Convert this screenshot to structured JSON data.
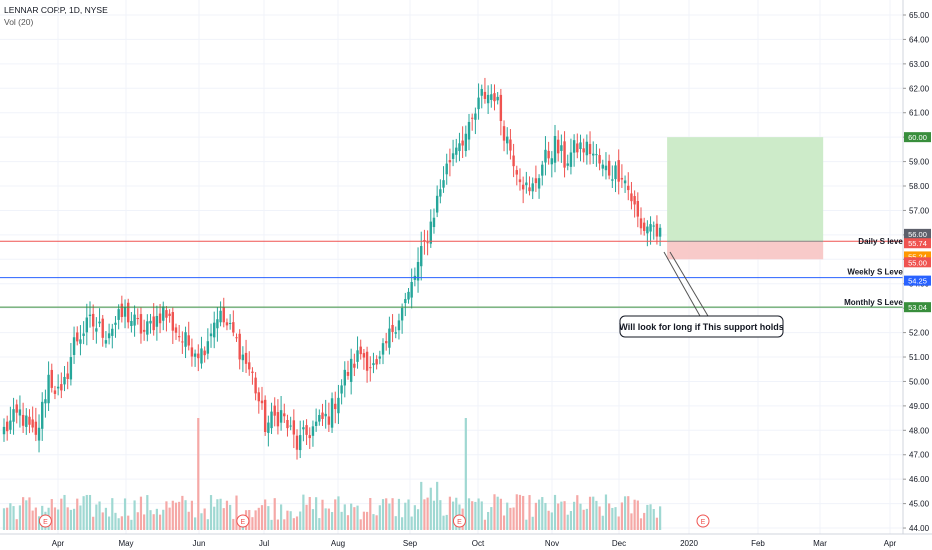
{
  "header": {
    "symbol": "LENNAR CORP, 1D, NYSE",
    "volume_label": "Vol (20)"
  },
  "chart_data": {
    "type": "candlestick",
    "ylim": [
      43.6,
      65.5
    ],
    "y_ticks": [
      44,
      45,
      46,
      47,
      48,
      49,
      50,
      51,
      52,
      53,
      54,
      55,
      56,
      57,
      58,
      59,
      60,
      61,
      62,
      63,
      64,
      65
    ],
    "x_labels": [
      "Apr",
      "May",
      "Jun",
      "Jul",
      "Aug",
      "Sep",
      "Oct",
      "Nov",
      "Dec",
      "2020",
      "Feb",
      "Mar",
      "Apr"
    ],
    "colors": {
      "up": "#26a69a",
      "down": "#ef5350"
    },
    "price_anchors": [
      [
        0,
        48.0
      ],
      [
        5,
        48.7
      ],
      [
        10,
        47.6
      ],
      [
        14,
        50.2
      ],
      [
        18,
        49.3
      ],
      [
        22,
        51.6
      ],
      [
        27,
        52.4
      ],
      [
        32,
        52.0
      ],
      [
        38,
        52.8
      ],
      [
        44,
        52.0
      ],
      [
        50,
        52.9
      ],
      [
        56,
        51.7
      ],
      [
        62,
        51.2
      ],
      [
        67,
        52.8
      ],
      [
        72,
        51.9
      ],
      [
        78,
        50.2
      ],
      [
        82,
        48.2
      ],
      [
        87,
        48.7
      ],
      [
        92,
        47.4
      ],
      [
        97,
        48.1
      ],
      [
        102,
        48.6
      ],
      [
        107,
        50.2
      ],
      [
        112,
        51.2
      ],
      [
        117,
        50.4
      ],
      [
        122,
        52.2
      ],
      [
        127,
        53.5
      ],
      [
        133,
        56.0
      ],
      [
        138,
        58.4
      ],
      [
        142,
        59.8
      ],
      [
        146,
        60.2
      ],
      [
        150,
        61.7
      ],
      [
        154,
        61.8
      ],
      [
        157,
        60.3
      ],
      [
        161,
        58.8
      ],
      [
        165,
        57.6
      ],
      [
        169,
        58.9
      ],
      [
        173,
        59.7
      ],
      [
        176,
        59.0
      ],
      [
        180,
        59.6
      ],
      [
        184,
        59.5
      ],
      [
        188,
        58.7
      ],
      [
        191,
        58.6
      ],
      [
        194,
        58.6
      ],
      [
        197,
        57.5
      ],
      [
        200,
        56.2
      ],
      [
        203,
        56.5
      ],
      [
        206,
        55.9
      ]
    ],
    "volume_spikes": [
      61,
      145
    ],
    "earnings_markers": [
      {
        "label": "E",
        "index": 13
      },
      {
        "label": "E",
        "index": 75
      },
      {
        "label": "E",
        "index": 143
      },
      {
        "label": "E",
        "index": 210
      }
    ],
    "levels": [
      {
        "name": "Daily S level",
        "price": 55.74,
        "color": "#ef5350"
      },
      {
        "name": "Weekly S Level",
        "price": 54.25,
        "color": "#2962ff"
      },
      {
        "name": "Monthly S Level",
        "price": 53.04,
        "color": "#388e3c"
      }
    ],
    "position": {
      "entry": 55.74,
      "target": 60.0,
      "stop": 55.0,
      "start_index": 206,
      "end_index": 255
    },
    "price_tags": [
      {
        "value": "60.00",
        "price": 60.0,
        "bg": "#388e3c"
      },
      {
        "value": "56.00",
        "price": 56.0,
        "bg": "#5d606b"
      },
      {
        "value": "55.74",
        "price": 55.74,
        "bg": "#ef5350"
      },
      {
        "value": "55.24",
        "price": 55.24,
        "bg": "#ff9800"
      },
      {
        "value": "55.00",
        "price": 55.0,
        "bg": "#ef5350"
      },
      {
        "value": "54.25",
        "price": 54.25,
        "bg": "#2962ff"
      },
      {
        "value": "53.04",
        "price": 53.04,
        "bg": "#388e3c"
      }
    ],
    "annotation": "Will look for long if This support holds"
  }
}
